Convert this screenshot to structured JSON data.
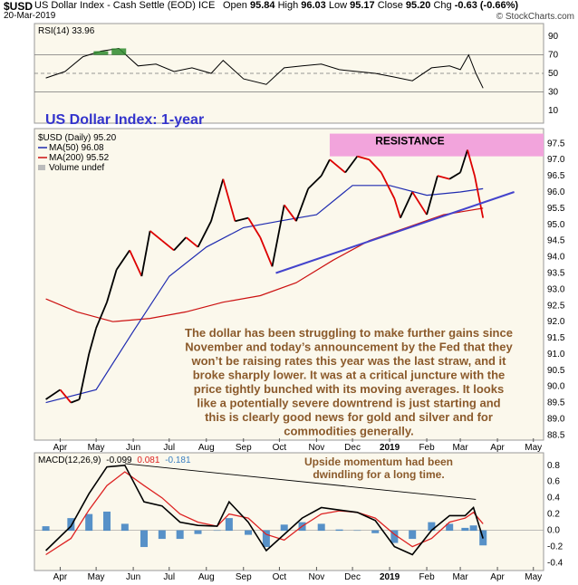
{
  "header": {
    "symbol": "$USD",
    "name": "US Dollar Index - Cash Settle (EOD) ICE",
    "date": "20-Mar-2019",
    "open_label": "Open",
    "open": "95.84",
    "high_label": "High",
    "high": "96.03",
    "low_label": "Low",
    "low": "95.17",
    "close_label": "Close",
    "close": "95.20",
    "chg_label": "Chg",
    "chg": "-0.63 (-0.66%)",
    "credit": "© StockCharts.com"
  },
  "colors": {
    "price_up": "#000000",
    "price_down": "#dd0000",
    "ma50": "#1f2bb0",
    "ma200": "#cc1111",
    "trendline": "#4444cc",
    "resistance": "#f2a4dc",
    "panel_bg": "#fbf8ec",
    "rsi_fill_high": "#2e8b2e",
    "macd_line": "#000000",
    "macd_signal": "#dd2222",
    "macd_hist": "#3a7fc2",
    "annotation": "#8b5a2b",
    "title": "#3333cc"
  },
  "chart_data": [
    {
      "type": "line",
      "title": "RSI(14) 33.96",
      "legend": "RSI(14) 33.96",
      "ylim": [
        0,
        100
      ],
      "y_ticks": [
        "90",
        "70",
        "50",
        "30",
        "10"
      ],
      "guides": [
        70,
        50,
        30
      ],
      "x": [
        "2018-03-20",
        "2018-04-05",
        "2018-04-20",
        "2018-05-05",
        "2018-05-20",
        "2018-06-05",
        "2018-06-20",
        "2018-07-05",
        "2018-07-20",
        "2018-08-05",
        "2018-08-15",
        "2018-09-01",
        "2018-09-20",
        "2018-10-05",
        "2018-10-20",
        "2018-11-05",
        "2018-11-20",
        "2018-12-05",
        "2018-12-20",
        "2019-01-05",
        "2019-01-20",
        "2019-02-05",
        "2019-02-20",
        "2019-03-01",
        "2019-03-08",
        "2019-03-14",
        "2019-03-20"
      ],
      "values": [
        45,
        52,
        68,
        74,
        77,
        58,
        60,
        52,
        56,
        50,
        64,
        44,
        38,
        56,
        58,
        60,
        54,
        52,
        50,
        46,
        42,
        56,
        58,
        54,
        70,
        50,
        34
      ]
    },
    {
      "type": "line",
      "title": "US Dollar Index: 1-year",
      "ylim": [
        88.4,
        97.9
      ],
      "y_ticks": [
        "97.5",
        "97.0",
        "96.5",
        "96.0",
        "95.5",
        "95.0",
        "94.5",
        "94.0",
        "93.5",
        "93.0",
        "92.5",
        "92.0",
        "91.5",
        "91.0",
        "90.5",
        "90.0",
        "89.5",
        "89.0",
        "88.5"
      ],
      "x_ticks": [
        "Apr",
        "May",
        "Jun",
        "Jul",
        "Aug",
        "Sep",
        "Oct",
        "Nov",
        "Dec",
        "2019",
        "Feb",
        "Mar",
        "Apr",
        "May"
      ],
      "legend": [
        "$USD (Daily) 95.20",
        "MA(50) 96.08",
        "MA(200) 95.52",
        "Volume undef"
      ],
      "series": [
        {
          "name": "$USD (Daily) 95.20",
          "x": [
            "2018-03-20",
            "2018-04-01",
            "2018-04-10",
            "2018-04-17",
            "2018-04-25",
            "2018-05-01",
            "2018-05-10",
            "2018-05-18",
            "2018-05-29",
            "2018-06-08",
            "2018-06-15",
            "2018-06-25",
            "2018-07-05",
            "2018-07-15",
            "2018-07-25",
            "2018-08-05",
            "2018-08-15",
            "2018-08-25",
            "2018-09-05",
            "2018-09-15",
            "2018-09-25",
            "2018-10-05",
            "2018-10-15",
            "2018-10-25",
            "2018-11-05",
            "2018-11-12",
            "2018-11-25",
            "2018-12-05",
            "2018-12-15",
            "2018-12-25",
            "2019-01-05",
            "2019-01-10",
            "2019-01-20",
            "2019-02-01",
            "2019-02-10",
            "2019-02-20",
            "2019-03-01",
            "2019-03-07",
            "2019-03-13",
            "2019-03-20"
          ],
          "values": [
            89.6,
            89.9,
            89.5,
            89.6,
            91.0,
            91.8,
            92.6,
            93.6,
            94.2,
            93.4,
            94.8,
            94.5,
            94.2,
            94.6,
            94.3,
            95.1,
            96.4,
            95.1,
            95.2,
            94.6,
            93.7,
            95.6,
            95.1,
            96.1,
            96.5,
            97.0,
            96.6,
            97.1,
            97.0,
            96.6,
            95.8,
            95.2,
            96.0,
            95.3,
            96.5,
            96.4,
            96.6,
            97.3,
            96.5,
            95.2
          ]
        },
        {
          "name": "MA(50) 96.08",
          "x": [
            "2018-03-20",
            "2018-05-01",
            "2018-06-01",
            "2018-07-01",
            "2018-08-01",
            "2018-09-01",
            "2018-10-01",
            "2018-11-01",
            "2018-12-01",
            "2019-01-01",
            "2019-02-01",
            "2019-03-01",
            "2019-03-20"
          ],
          "values": [
            89.5,
            89.9,
            91.7,
            93.4,
            94.3,
            94.9,
            95.1,
            95.3,
            96.2,
            96.2,
            95.9,
            96.0,
            96.1
          ]
        },
        {
          "name": "MA(200) 95.52",
          "x": [
            "2018-03-20",
            "2018-04-15",
            "2018-05-15",
            "2018-06-15",
            "2018-07-15",
            "2018-08-15",
            "2018-09-15",
            "2018-10-15",
            "2018-11-15",
            "2018-12-15",
            "2019-01-15",
            "2019-02-15",
            "2019-03-20"
          ],
          "values": [
            92.7,
            92.3,
            92.0,
            92.1,
            92.3,
            92.6,
            92.8,
            93.2,
            93.9,
            94.5,
            94.9,
            95.3,
            95.5
          ]
        },
        {
          "name": "trendline",
          "x": [
            "2018-09-28",
            "2019-04-15"
          ],
          "values": [
            93.5,
            96.0
          ]
        }
      ],
      "annotations": {
        "resistance_label": "RESISTANCE",
        "resistance_band": [
          97.1,
          97.8
        ],
        "commentary": [
          "The dollar has been struggling to make further gains since",
          "November and today’s announcement by the Fed that they",
          "won’t be raising rates this year was the last straw, and it",
          "broke sharply lower. It was at a critical juncture with the",
          "price tightly bunched with its moving averages. It looks",
          "like a potentially severe downtrend is just starting and",
          "this is clearly good news for gold and silver and for",
          "commodities generally."
        ]
      }
    },
    {
      "type": "line",
      "title": "MACD(12,26,9) -0.099, 0.081, -0.181",
      "legend": [
        "MACD(12,26,9)",
        "-0.099",
        "0.081",
        "-0.181"
      ],
      "ylim": [
        -0.45,
        0.92
      ],
      "y_ticks": [
        "0.8",
        "0.6",
        "0.4",
        "0.2",
        "0.0",
        "-0.2",
        "-0.4"
      ],
      "x_ticks": [
        "Apr",
        "May",
        "Jun",
        "Jul",
        "Aug",
        "Sep",
        "Oct",
        "Nov",
        "Dec",
        "2019",
        "Feb",
        "Mar",
        "Apr",
        "May"
      ],
      "x": [
        "2018-03-20",
        "2018-04-10",
        "2018-04-25",
        "2018-05-10",
        "2018-05-25",
        "2018-06-10",
        "2018-06-25",
        "2018-07-10",
        "2018-07-25",
        "2018-08-10",
        "2018-08-20",
        "2018-09-05",
        "2018-09-20",
        "2018-10-05",
        "2018-10-20",
        "2018-11-05",
        "2018-11-20",
        "2018-12-05",
        "2018-12-20",
        "2019-01-05",
        "2019-01-20",
        "2019-02-05",
        "2019-02-20",
        "2019-03-05",
        "2019-03-12",
        "2019-03-20"
      ],
      "series": [
        {
          "name": "MACD",
          "values": [
            -0.25,
            0.05,
            0.45,
            0.78,
            0.8,
            0.35,
            0.3,
            0.1,
            0.06,
            0.05,
            0.35,
            0.1,
            -0.25,
            -0.05,
            0.15,
            0.28,
            0.25,
            0.22,
            0.12,
            -0.2,
            -0.3,
            0.0,
            0.18,
            0.18,
            0.28,
            -0.1
          ]
        },
        {
          "name": "Signal",
          "values": [
            -0.3,
            -0.1,
            0.25,
            0.55,
            0.72,
            0.55,
            0.4,
            0.2,
            0.1,
            0.05,
            0.2,
            0.15,
            -0.05,
            -0.12,
            0.05,
            0.2,
            0.24,
            0.22,
            0.15,
            -0.05,
            -0.2,
            -0.1,
            0.1,
            0.15,
            0.22,
            0.08
          ]
        },
        {
          "name": "Histogram",
          "values": [
            0.05,
            0.15,
            0.2,
            0.23,
            0.08,
            -0.2,
            -0.1,
            -0.1,
            -0.04,
            0.0,
            0.15,
            -0.05,
            -0.2,
            0.07,
            0.1,
            0.08,
            0.01,
            0.0,
            -0.03,
            -0.15,
            -0.1,
            0.1,
            0.08,
            0.03,
            0.06,
            -0.18
          ]
        },
        {
          "name": "divergence",
          "x": [
            "2018-05-25",
            "2019-03-14"
          ],
          "values": [
            0.82,
            0.38
          ]
        }
      ],
      "annotations": {
        "note": [
          "Upside momentum had been",
          "dwindling for a long time."
        ]
      }
    }
  ]
}
